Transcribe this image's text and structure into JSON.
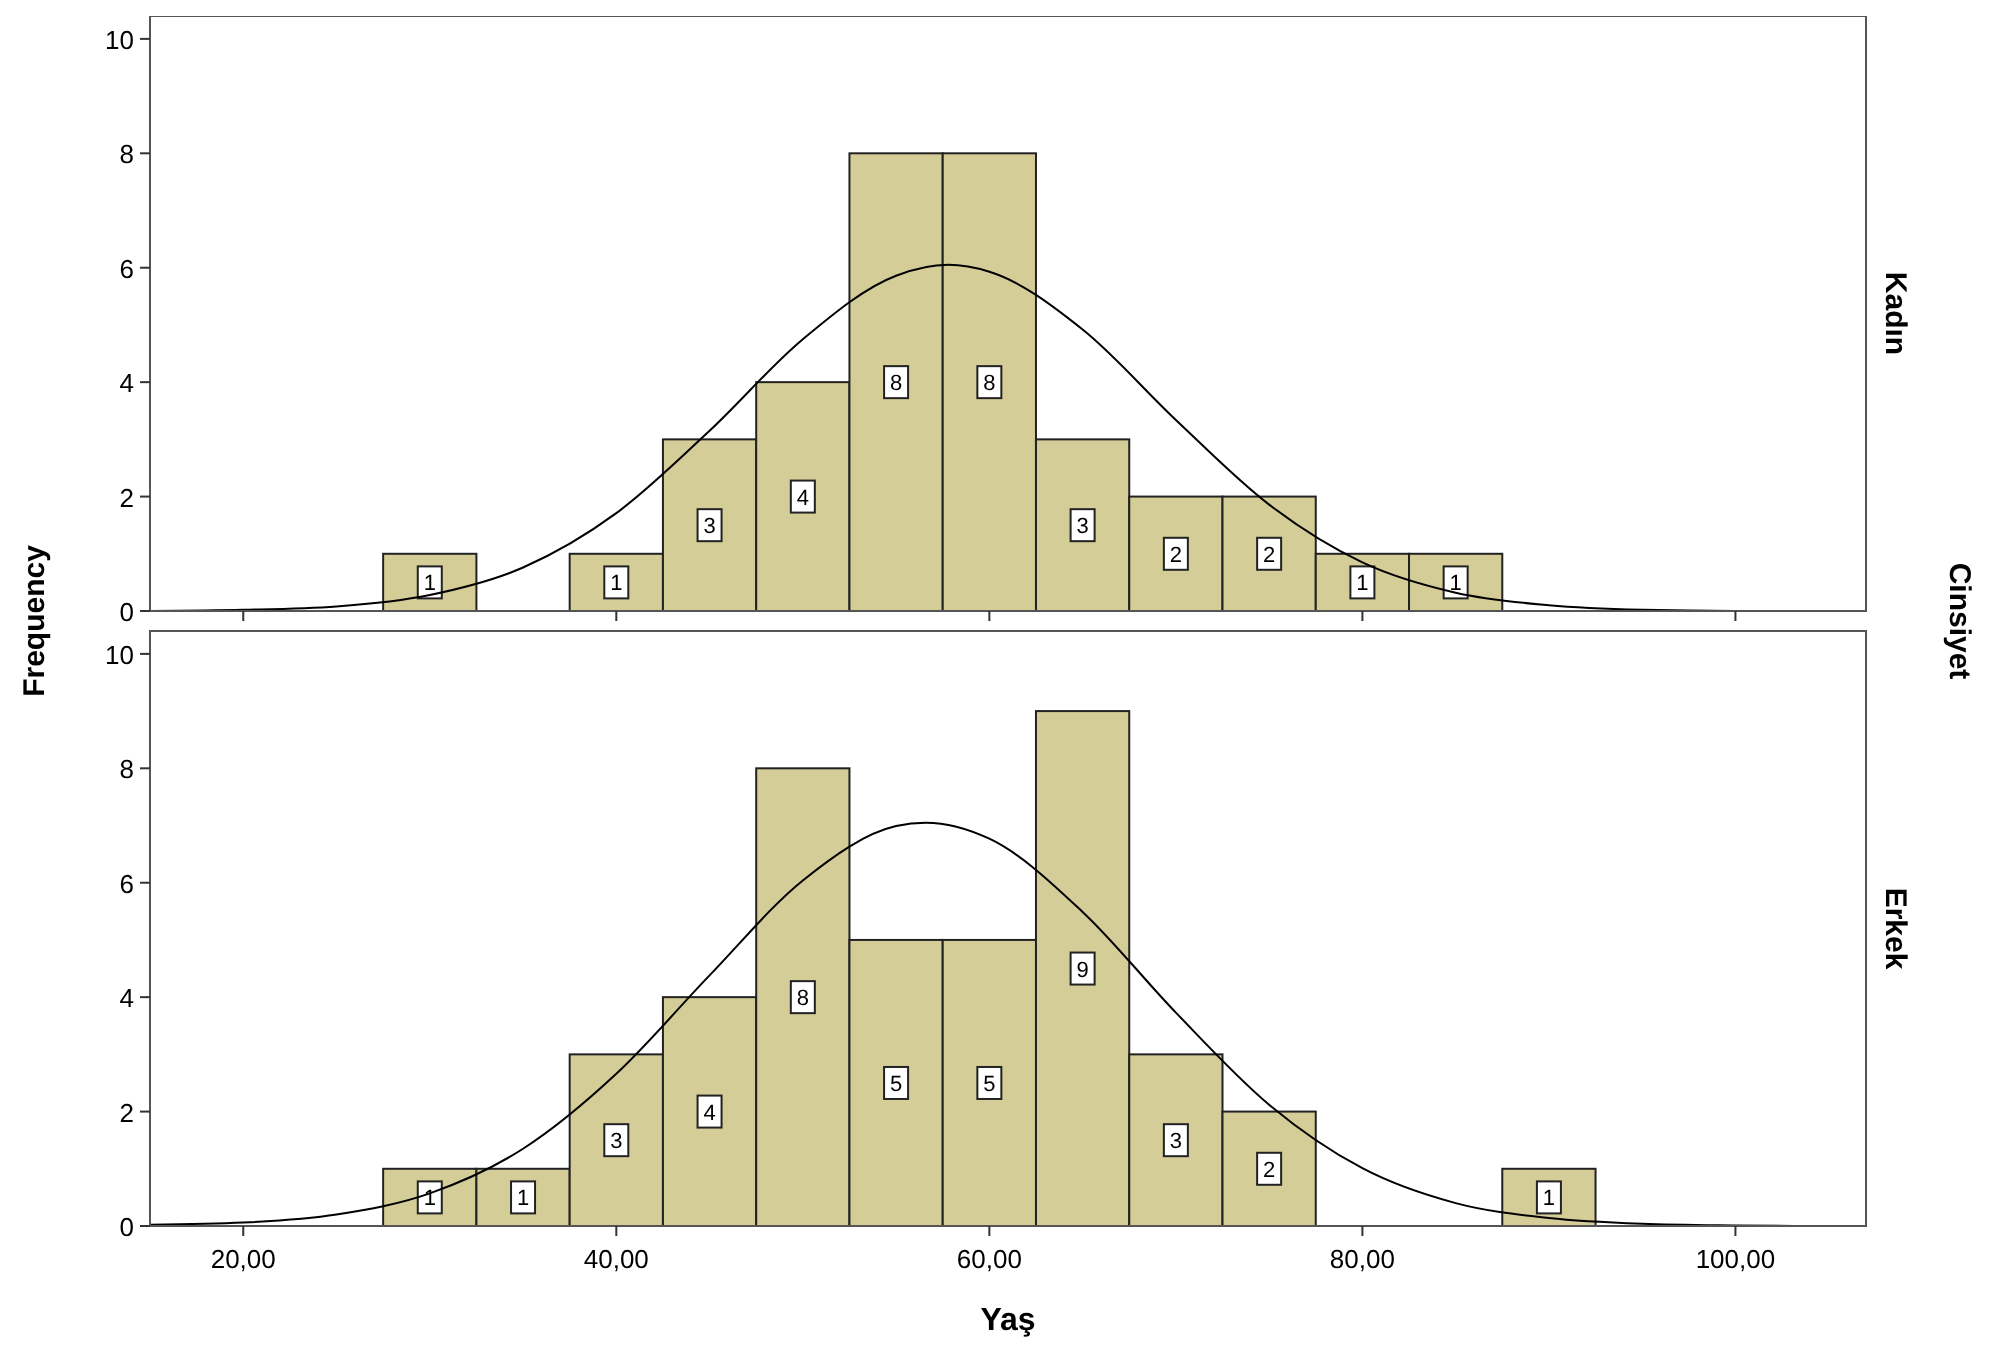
{
  "chart_data": [
    {
      "type": "histogram",
      "y2label": "Kadın",
      "ylabel": "Frequency",
      "annotations": [
        "Cinsiyet"
      ],
      "tick_labels": "y",
      "bins": [
        27.5,
        32.5,
        37.5,
        42.5,
        47.5,
        52.5,
        57.5,
        62.5,
        67.5,
        72.5,
        77.5,
        82.5,
        87.5,
        92.5
      ],
      "values": [
        1,
        0,
        1,
        3,
        4,
        8,
        8,
        3,
        2,
        2,
        1,
        1,
        0
      ],
      "color": "#d4cd98",
      "value_labels": [
        "1",
        null,
        "1",
        "3",
        "4",
        "8",
        "8",
        "3",
        "2",
        "2",
        "1",
        "1",
        null
      ],
      "series": [
        {
          "type": "line",
          "color": "#000000",
          "x": [
            15,
            20,
            25,
            30,
            35,
            40,
            45,
            50,
            55,
            57.8,
            60,
            65,
            70,
            75,
            80,
            85,
            90,
            95,
            100,
            105
          ],
          "values": [
            0,
            0.02,
            0.08,
            0.28,
            0.76,
            1.71,
            3.15,
            4.75,
            5.86,
            6.05,
            5.93,
            4.92,
            3.34,
            1.86,
            0.85,
            0.32,
            0.1,
            0.02,
            0,
            0
          ]
        }
      ],
      "xlim": [
        15,
        107
      ],
      "xticks": [
        20,
        40,
        60,
        80,
        100
      ],
      "ylim": [
        0,
        10.4
      ],
      "yticks": [
        0,
        2,
        4,
        6,
        8,
        10
      ]
    },
    {
      "type": "histogram",
      "y2label": "Erkek",
      "xlabel": "Yaş",
      "bins": [
        27.5,
        32.5,
        37.5,
        42.5,
        47.5,
        52.5,
        57.5,
        62.5,
        67.5,
        72.5,
        77.5,
        82.5,
        87.5,
        92.5
      ],
      "values": [
        1,
        1,
        3,
        4,
        8,
        5,
        5,
        9,
        3,
        2,
        0,
        0,
        1
      ],
      "color": "#d4cd98",
      "value_labels": [
        "1",
        "1",
        "3",
        "4",
        "8",
        "5",
        "5",
        "9",
        "3",
        "2",
        null,
        null,
        "1"
      ],
      "series": [
        {
          "type": "line",
          "color": "#000000",
          "x": [
            15,
            20,
            25,
            30,
            35,
            40,
            45,
            50,
            55,
            56.6,
            60,
            65,
            70,
            75,
            80,
            85,
            90,
            95,
            100,
            105
          ],
          "values": [
            0.02,
            0.06,
            0.2,
            0.57,
            1.35,
            2.66,
            4.38,
            6.04,
            6.99,
            7.05,
            6.77,
            5.49,
            3.73,
            2.12,
            1.01,
            0.4,
            0.14,
            0.04,
            0.01,
            0
          ]
        }
      ],
      "xlim": [
        15,
        107
      ],
      "xticks": [
        {
          "value": 20,
          "label": "20,00"
        },
        {
          "value": 40,
          "label": "40,00"
        },
        {
          "value": 60,
          "label": "60,00"
        },
        {
          "value": 80,
          "label": "80,00"
        },
        {
          "value": 100,
          "label": "100,00"
        }
      ],
      "ylim": [
        0,
        10.4
      ],
      "yticks": [
        0,
        2,
        4,
        6,
        8,
        10
      ]
    }
  ]
}
